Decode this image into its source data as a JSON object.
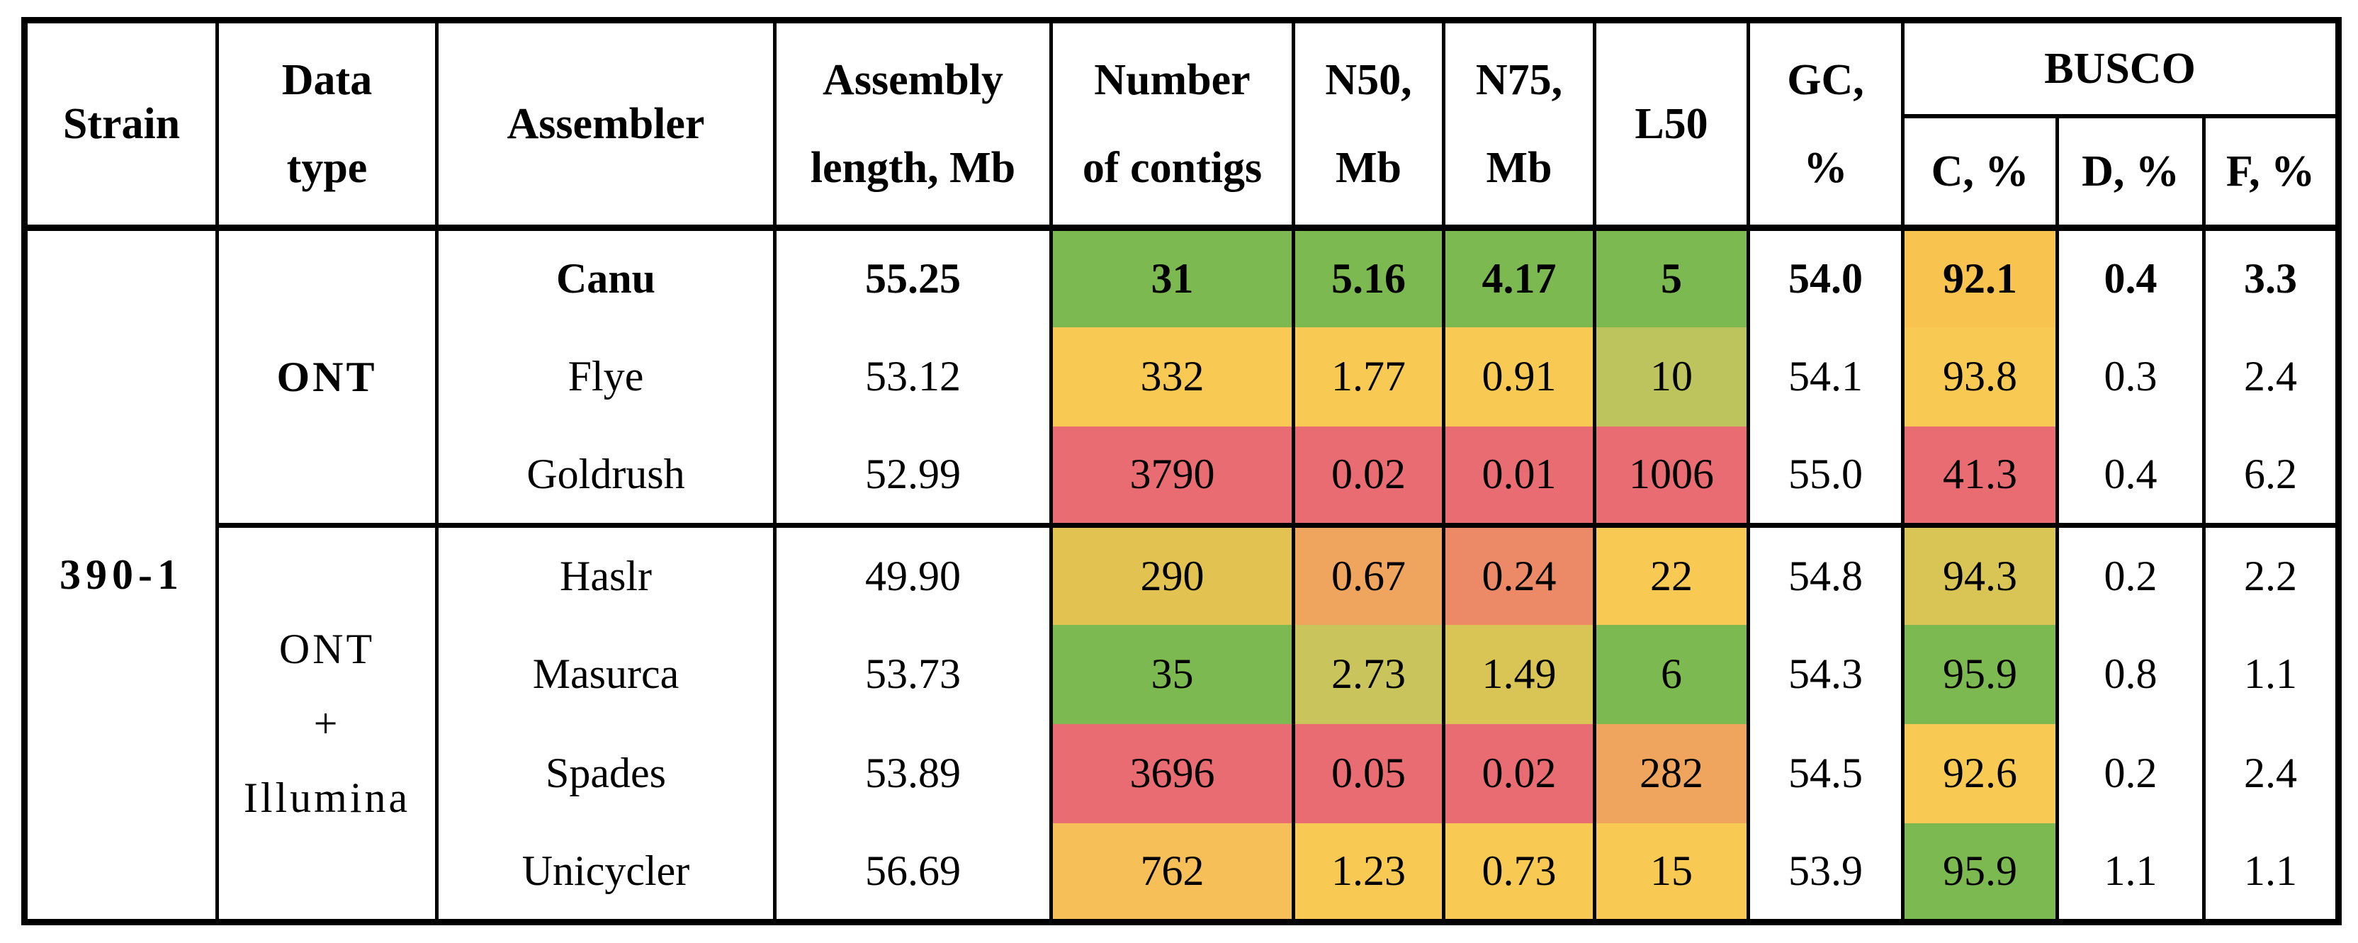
{
  "table": {
    "headers": {
      "strain": "Strain",
      "data_type": [
        "Data",
        "type"
      ],
      "assembler": "Assembler",
      "assembly_length": [
        "Assembly",
        "length, Mb"
      ],
      "contigs": [
        "Number",
        "of contigs"
      ],
      "n50": [
        "N50,",
        "Mb"
      ],
      "n75": [
        "N75,",
        "Mb"
      ],
      "l50": "L50",
      "gc": [
        "GC,",
        "%"
      ],
      "busco": "BUSCO",
      "busco_c": "C, %",
      "busco_d": "D, %",
      "busco_f": "F, %"
    },
    "strain": "390-1",
    "groups": [
      {
        "label_lines": [
          "ONT"
        ],
        "start": 0,
        "span": 3
      },
      {
        "label_lines": [
          "ONT",
          "+",
          "Illumina"
        ],
        "start": 3,
        "span": 4
      }
    ],
    "rows": [
      {
        "assembler": "Canu",
        "bold": true,
        "length": "55.25",
        "contigs": {
          "v": "31",
          "c": "green"
        },
        "n50": {
          "v": "5.16",
          "c": "green"
        },
        "n75": {
          "v": "4.17",
          "c": "green"
        },
        "l50": {
          "v": "5",
          "c": "green"
        },
        "gc": "54.0",
        "busco_c": {
          "v": "92.1",
          "c": "yellow_deep"
        },
        "busco_d": "0.4",
        "busco_f": "3.3"
      },
      {
        "assembler": "Flye",
        "bold": false,
        "length": "53.12",
        "contigs": {
          "v": "332",
          "c": "yellow"
        },
        "n50": {
          "v": "1.77",
          "c": "yellow"
        },
        "n75": {
          "v": "0.91",
          "c": "yellow"
        },
        "l50": {
          "v": "10",
          "c": "yellow_green"
        },
        "gc": "54.1",
        "busco_c": {
          "v": "93.8",
          "c": "yellow"
        },
        "busco_d": "0.3",
        "busco_f": "2.4"
      },
      {
        "assembler": "Goldrush",
        "bold": false,
        "length": "52.99",
        "contigs": {
          "v": "3790",
          "c": "red"
        },
        "n50": {
          "v": "0.02",
          "c": "red"
        },
        "n75": {
          "v": "0.01",
          "c": "red"
        },
        "l50": {
          "v": "1006",
          "c": "red"
        },
        "gc": "55.0",
        "busco_c": {
          "v": "41.3",
          "c": "red"
        },
        "busco_d": "0.4",
        "busco_f": "6.2"
      },
      {
        "assembler": "Haslr",
        "bold": false,
        "length": "49.90",
        "contigs": {
          "v": "290",
          "c": "dark_yellow"
        },
        "n50": {
          "v": "0.67",
          "c": "orange"
        },
        "n75": {
          "v": "0.24",
          "c": "salmon"
        },
        "l50": {
          "v": "22",
          "c": "yellow"
        },
        "gc": "54.8",
        "busco_c": {
          "v": "94.3",
          "c": "olive_yellow"
        },
        "busco_d": "0.2",
        "busco_f": "2.2"
      },
      {
        "assembler": "Masurca",
        "bold": false,
        "length": "53.73",
        "contigs": {
          "v": "35",
          "c": "green"
        },
        "n50": {
          "v": "2.73",
          "c": "olive"
        },
        "n75": {
          "v": "1.49",
          "c": "olive_yellow"
        },
        "l50": {
          "v": "6",
          "c": "green"
        },
        "gc": "54.3",
        "busco_c": {
          "v": "95.9",
          "c": "green"
        },
        "busco_d": "0.8",
        "busco_f": "1.1"
      },
      {
        "assembler": "Spades",
        "bold": false,
        "length": "53.89",
        "contigs": {
          "v": "3696",
          "c": "red"
        },
        "n50": {
          "v": "0.05",
          "c": "red"
        },
        "n75": {
          "v": "0.02",
          "c": "red"
        },
        "l50": {
          "v": "282",
          "c": "orange"
        },
        "gc": "54.5",
        "busco_c": {
          "v": "92.6",
          "c": "yellow"
        },
        "busco_d": "0.2",
        "busco_f": "2.4"
      },
      {
        "assembler": "Unicycler",
        "bold": false,
        "length": "56.69",
        "contigs": {
          "v": "762",
          "c": "yellow_orange"
        },
        "n50": {
          "v": "1.23",
          "c": "yellow"
        },
        "n75": {
          "v": "0.73",
          "c": "yellow"
        },
        "l50": {
          "v": "15",
          "c": "yellow"
        },
        "gc": "53.9",
        "busco_c": {
          "v": "95.9",
          "c": "green"
        },
        "busco_d": "1.1",
        "busco_f": "1.1"
      }
    ]
  },
  "palette": {
    "green": "#7cb951",
    "yellow_green": "#bdc45e",
    "olive": "#c9c55c",
    "olive_yellow": "#d8c556",
    "dark_yellow": "#e2c351",
    "yellow": "#f8ca54",
    "yellow_deep": "#f9c34f",
    "yellow_orange": "#f6bf57",
    "orange": "#f0a55f",
    "salmon": "#ec8a68",
    "red": "#e96c72"
  }
}
